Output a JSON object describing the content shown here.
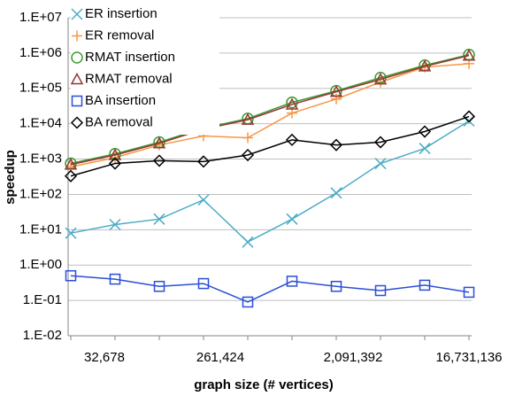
{
  "chart_data": {
    "type": "line",
    "xlabel": "graph size (# vertices)",
    "ylabel": "speedup",
    "categories": [
      "32,678",
      null,
      null,
      "261,424",
      null,
      null,
      "2,091,392",
      null,
      null,
      "16,731,136"
    ],
    "log_y": true,
    "grid": true,
    "legend": "top-left",
    "ylim": [
      0.01,
      10000000
    ],
    "yticks": [
      {
        "value": 0.01,
        "label": "1.E-02"
      },
      {
        "value": 0.1,
        "label": "1.E-01"
      },
      {
        "value": 1,
        "label": "1.E+00"
      },
      {
        "value": 10,
        "label": "1.E+01"
      },
      {
        "value": 100,
        "label": "1.E+02"
      },
      {
        "value": 1000,
        "label": "1.E+03"
      },
      {
        "value": 10000,
        "label": "1.E+04"
      },
      {
        "value": 100000,
        "label": "1.E+05"
      },
      {
        "value": 1000000,
        "label": "1.E+06"
      },
      {
        "value": 10000000,
        "label": "1.E+07"
      }
    ],
    "series": [
      {
        "name": "ER insertion",
        "color": "#4bacc6",
        "marker": "x",
        "values": [
          8,
          14,
          20,
          70,
          4.5,
          20,
          110,
          750,
          2000,
          12000
        ]
      },
      {
        "name": "ER removal",
        "color": "#f79646",
        "marker": "plus",
        "values": [
          600,
          1100,
          2500,
          4500,
          4000,
          20000,
          50000,
          150000,
          400000,
          500000
        ]
      },
      {
        "name": "RMAT insertion",
        "color": "#3d9a32",
        "marker": "circle",
        "values": [
          750,
          1400,
          3000,
          7500,
          14000,
          40000,
          85000,
          200000,
          450000,
          900000
        ]
      },
      {
        "name": "RMAT removal",
        "color": "#953735",
        "marker": "triangle",
        "values": [
          700,
          1300,
          2800,
          7000,
          13000,
          35000,
          80000,
          180000,
          420000,
          850000
        ]
      },
      {
        "name": "BA insertion",
        "color": "#2a4ed6",
        "marker": "square",
        "values": [
          0.5,
          0.4,
          0.25,
          0.3,
          0.09,
          0.35,
          0.25,
          0.19,
          0.27,
          0.17
        ]
      },
      {
        "name": "BA removal",
        "color": "#000000",
        "marker": "diamond",
        "values": [
          330,
          750,
          900,
          850,
          1300,
          3500,
          2500,
          3000,
          6000,
          16000
        ]
      }
    ]
  }
}
